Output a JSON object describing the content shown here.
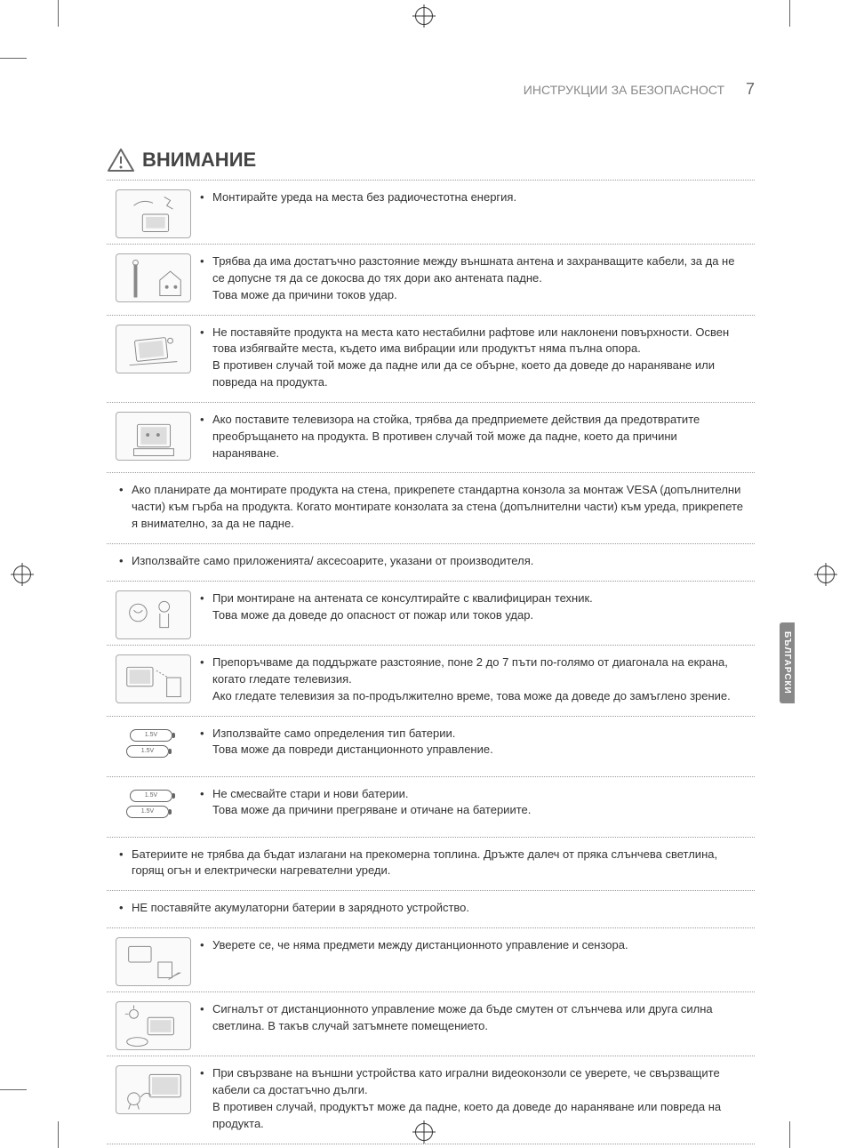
{
  "header": {
    "title": "ИНСТРУКЦИИ ЗА БЕЗОПАСНОСТ",
    "page_number": "7"
  },
  "section_title": "ВНИМАНИЕ",
  "side_tab": "БЪЛГАРСКИ",
  "rows": [
    {
      "icon": "tv-radio",
      "text": "Монтирайте уреда на места без радиочестотна енергия."
    },
    {
      "icon": "antenna-house",
      "text": "Трябва да има достатъчно разстояние между външната антена и захранващите кабели, за да не се допусне тя да се докосва до тях дори ако антената падне.\nТова може да причини токов удар."
    },
    {
      "icon": "tv-unstable",
      "text": "Не поставяйте продукта на места като нестабилни рафтове или наклонени повърхности. Освен това избягвайте места, където има вибрации или продуктът няма пълна опора.\nВ противен случай той може да падне или да се обърне, което да доведе до нараняване или повреда на продукта."
    },
    {
      "icon": "tv-stand",
      "text": "Ако поставите телевизора на стойка, трябва да предприемете действия да предотвратите преобръщането на продукта. В противен случай той може да падне, което да причини нараняване."
    },
    {
      "icon": null,
      "text": "Ако планирате да монтирате продукта на стена, прикрепете стандартна конзола за монтаж VESA (допълнителни части) към гърба на продукта. Когато монтирате конзолата за стена (допълнителни части) към уреда, прикрепете я внимателно, за да не падне."
    },
    {
      "icon": null,
      "text": "Използвайте само приложенията/ аксесоарите, указани от производителя."
    },
    {
      "icon": "technician",
      "text": "При монтиране на антената се консултирайте с квалифициран техник.\nТова може да доведе до опасност от пожар или токов удар."
    },
    {
      "icon": "tv-distance",
      "text": "Препоръчваме да поддържате разстояние, поне 2 до 7 пъти по-голямо от диагонала на екрана, когато гледате телевизия.\nАко гледате телевизия за по-продължително време, това може да доведе до замъглено зрение."
    },
    {
      "icon": "batteries-1",
      "text": "Използвайте само определения тип батерии.\nТова може да повреди дистанционното управление."
    },
    {
      "icon": "batteries-2",
      "text": "Не смесвайте стари и нови батерии.\nТова може да причини прегряване и отичане на батериите."
    },
    {
      "icon": null,
      "text": "Батериите не трябва да бъдат излагани на прекомерна топлина. Дръжте далеч от пряка слънчева светлина, горящ огън и електрически нагревателни уреди."
    },
    {
      "icon": null,
      "text": "НЕ поставяйте акумулаторни батерии в зарядното устройство."
    },
    {
      "icon": "remote-sensor",
      "text": "Уверете се, че няма предмети между дистанционното управление и сензора."
    },
    {
      "icon": "remote-sunlight",
      "text": "Сигналът от дистанционното управление може да бъде смутен от слънчева или друга силна светлина. В такъв случай затъмнете помещението."
    },
    {
      "icon": "game-console",
      "text": "При свързване на външни устройства като игрални видеоконзоли се уверете, че свързващите кабели са достатъчно дълги.\nВ противен случай, продуктът може да падне, което да доведе до нараняване или повреда на продукта."
    }
  ],
  "battery_label": "1.5V"
}
